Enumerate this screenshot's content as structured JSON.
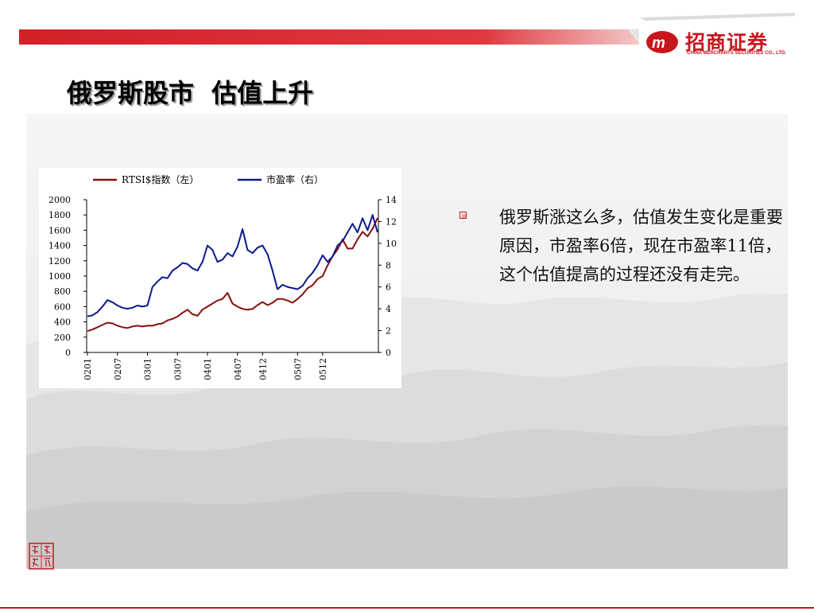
{
  "slide": {
    "title": "俄罗斯股市  估值上升",
    "logo": {
      "name_cn": "招商证券",
      "name_en": "CHINA MERCHANTS SECURITIES CO., LTD."
    },
    "bullet": "俄罗斯涨这么多，估值发生变化是重要原因，市盈率6倍，现在市盈率11倍，这个估值提高的过程还没有走完。",
    "seal_text": "致远投行",
    "colors": {
      "accent_red": "#c8161d",
      "rtsi_line": "#8b0d0d",
      "pe_line": "#0a1a8c"
    }
  },
  "chart_data": {
    "type": "line",
    "title": "",
    "x": [
      "0201",
      "0202",
      "0203",
      "0204",
      "0205",
      "0206",
      "0207",
      "0208",
      "0209",
      "0210",
      "0211",
      "0212",
      "0301",
      "0302",
      "0303",
      "0304",
      "0305",
      "0306",
      "0307",
      "0308",
      "0309",
      "0310",
      "0311",
      "0312",
      "0401",
      "0402",
      "0403",
      "0404",
      "0405",
      "0406",
      "0407",
      "0408",
      "0409",
      "0410",
      "0411",
      "0412",
      "0501",
      "0502",
      "0503",
      "0504",
      "0505",
      "0506",
      "0507",
      "0508",
      "0509",
      "0510",
      "0511",
      "0512",
      "0601",
      "0602",
      "0603",
      "0604",
      "0605",
      "0606",
      "0607",
      "0608",
      "0609",
      "0610",
      "0611"
    ],
    "x_tick_labels": [
      "0201",
      "0207",
      "0301",
      "0307",
      "0401",
      "0407",
      "0412",
      "0507",
      "0512"
    ],
    "series": [
      {
        "name": "RTSI$指数（左）",
        "axis": "left",
        "values": [
          280,
          300,
          330,
          360,
          390,
          380,
          350,
          330,
          320,
          340,
          350,
          340,
          350,
          350,
          370,
          380,
          420,
          440,
          470,
          520,
          560,
          500,
          480,
          560,
          600,
          640,
          680,
          700,
          780,
          640,
          600,
          570,
          560,
          570,
          620,
          660,
          620,
          650,
          700,
          700,
          680,
          650,
          700,
          760,
          840,
          880,
          960,
          1000,
          1140,
          1260,
          1350,
          1480,
          1360,
          1360,
          1480,
          1580,
          1520,
          1620,
          1760
        ]
      },
      {
        "name": "市盈率（右）",
        "axis": "right",
        "values": [
          3.3,
          3.4,
          3.7,
          4.2,
          4.8,
          4.6,
          4.3,
          4.1,
          4.0,
          4.1,
          4.3,
          4.2,
          4.3,
          6.0,
          6.5,
          6.9,
          6.8,
          7.5,
          7.8,
          8.2,
          8.1,
          7.7,
          7.5,
          8.3,
          9.8,
          9.4,
          8.3,
          8.5,
          9.1,
          8.8,
          9.7,
          11.3,
          9.4,
          9.1,
          9.6,
          9.8,
          9.0,
          7.5,
          5.8,
          6.2,
          6.0,
          5.9,
          5.8,
          6.1,
          6.8,
          7.3,
          8.0,
          8.9,
          8.3,
          8.8,
          9.8,
          10.2,
          11.0,
          11.8,
          11.0,
          12.3,
          11.2,
          12.6,
          11.0
        ]
      }
    ],
    "y_left": {
      "ylim": [
        0,
        2000
      ],
      "ticks": [
        "0",
        "200",
        "400",
        "600",
        "800",
        "1000",
        "1200",
        "1400",
        "1600",
        "1800",
        "2000"
      ]
    },
    "y_right": {
      "ylim": [
        0,
        14
      ],
      "ticks": [
        "0",
        "2",
        "4",
        "6",
        "8",
        "10",
        "12",
        "14"
      ]
    },
    "legend_position": "top",
    "grid": false
  }
}
